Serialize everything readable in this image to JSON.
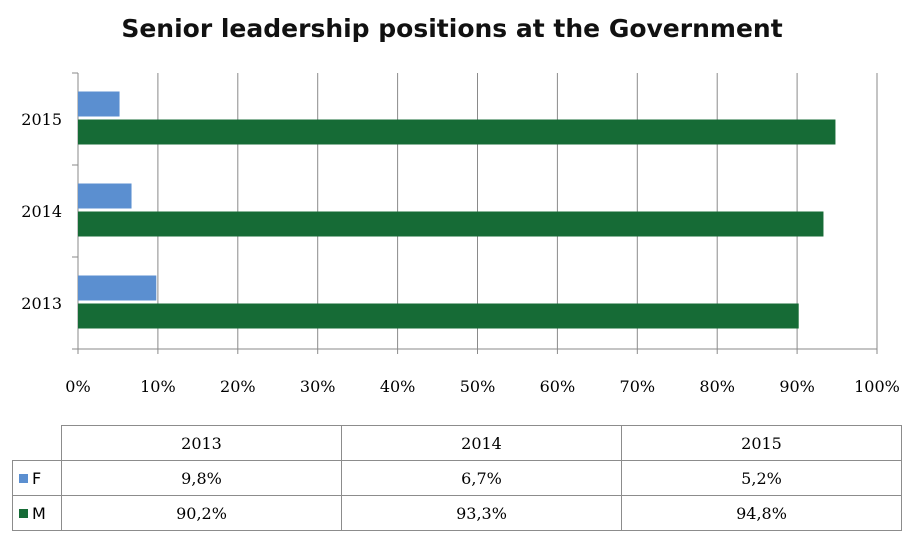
{
  "chart_data": {
    "type": "bar",
    "orientation": "horizontal",
    "title": "Senior leadership positions at the Government",
    "categories": [
      "2013",
      "2014",
      "2015"
    ],
    "series": [
      {
        "name": "F",
        "values": [
          9.8,
          6.7,
          5.2
        ],
        "color": "#5b8fd0"
      },
      {
        "name": "M",
        "values": [
          90.2,
          93.3,
          94.8
        ],
        "color": "#166b36"
      }
    ],
    "xlim": [
      0,
      100
    ],
    "x_ticks": [
      "0%",
      "10%",
      "20%",
      "30%",
      "40%",
      "50%",
      "60%",
      "70%",
      "80%",
      "90%",
      "100%"
    ],
    "grid": true,
    "data_table": {
      "columns": [
        "2013",
        "2014",
        "2015"
      ],
      "rows": [
        {
          "label": "F",
          "cells": [
            "9,8%",
            "6,7%",
            "5,2%"
          ]
        },
        {
          "label": "M",
          "cells": [
            "90,2%",
            "93,3%",
            "94,8%"
          ]
        }
      ]
    }
  }
}
